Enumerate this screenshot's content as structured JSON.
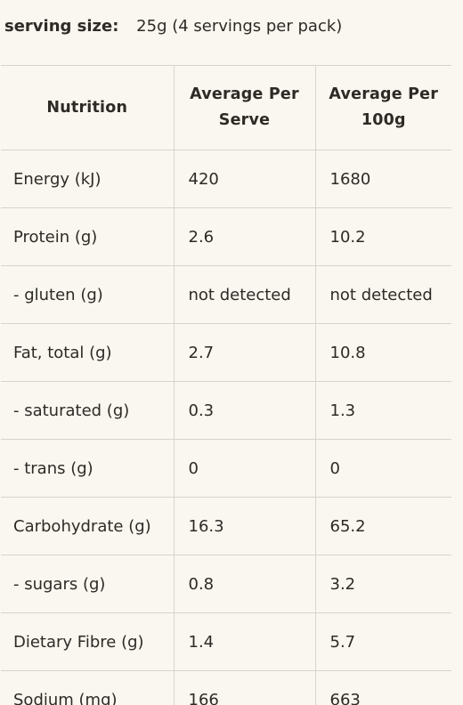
{
  "serving": {
    "label": "serving size:",
    "value": "25g (4 servings per pack)"
  },
  "table": {
    "headers": [
      "Nutrition",
      "Average Per Serve",
      "Average Per 100g"
    ],
    "rows": [
      {
        "nutrient": "Energy (kJ)",
        "per_serve": "420",
        "per_100g": "1680"
      },
      {
        "nutrient": "Protein (g)",
        "per_serve": "2.6",
        "per_100g": "10.2"
      },
      {
        "nutrient": "- gluten (g)",
        "per_serve": "not detected",
        "per_100g": "not detected"
      },
      {
        "nutrient": "Fat, total (g)",
        "per_serve": "2.7",
        "per_100g": "10.8"
      },
      {
        "nutrient": "- saturated (g)",
        "per_serve": "0.3",
        "per_100g": "1.3"
      },
      {
        "nutrient": "- trans (g)",
        "per_serve": "0",
        "per_100g": "0"
      },
      {
        "nutrient": "Carbohydrate (g)",
        "per_serve": "16.3",
        "per_100g": "65.2"
      },
      {
        "nutrient": "- sugars (g)",
        "per_serve": "0.8",
        "per_100g": "3.2"
      },
      {
        "nutrient": "Dietary Fibre (g)",
        "per_serve": "1.4",
        "per_100g": "5.7"
      },
      {
        "nutrient": "Sodium (mg)",
        "per_serve": "166",
        "per_100g": "663"
      }
    ]
  },
  "colors": {
    "background": "#f9f7f0",
    "text": "#2e2a26",
    "border": "#d8d4ca"
  }
}
